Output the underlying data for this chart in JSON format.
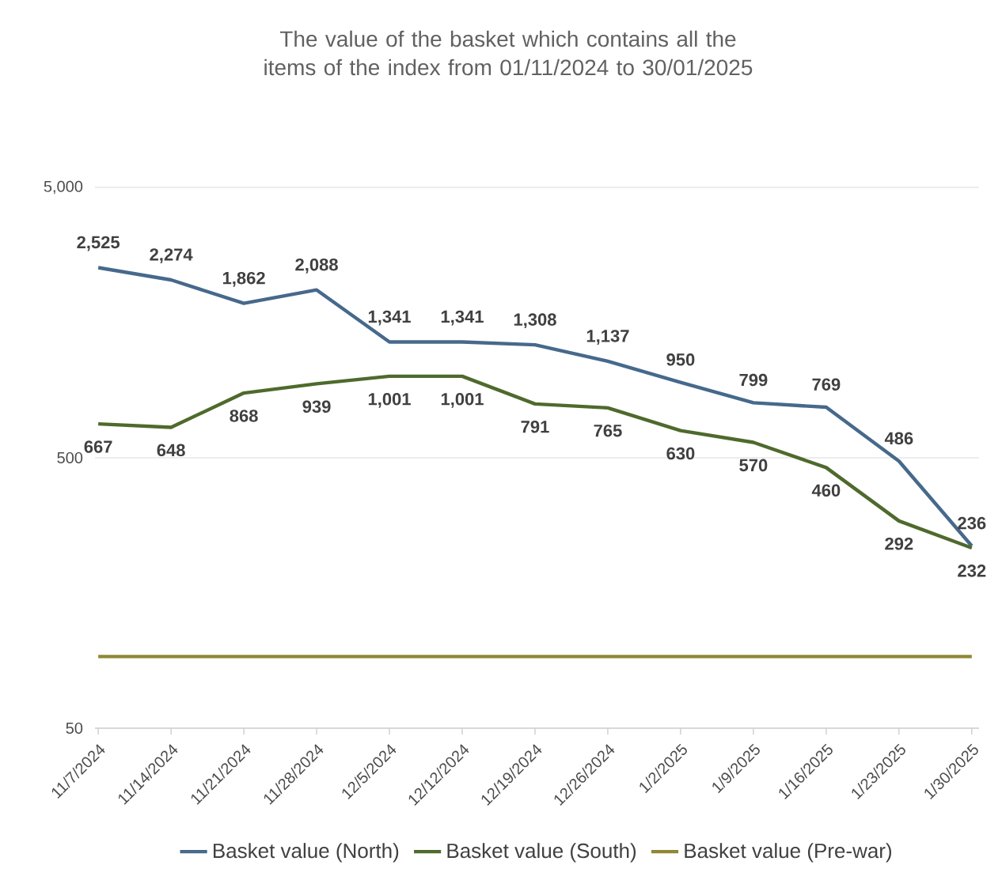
{
  "chart_data": {
    "type": "line",
    "title": "The value of the basket which contains all the items of the index from 01/11/2024 to 30/01/2025",
    "categories": [
      "11/7/2024",
      "11/14/2024",
      "11/21/2024",
      "11/28/2024",
      "12/5/2024",
      "12/12/2024",
      "12/19/2024",
      "12/26/2024",
      "1/2/2025",
      "1/9/2025",
      "1/16/2025",
      "1/23/2025",
      "1/30/2025"
    ],
    "series": [
      {
        "name": "Basket value (North)",
        "color": "#46698c",
        "values": [
          2525,
          2274,
          1862,
          2088,
          1341,
          1341,
          1308,
          1137,
          950,
          799,
          769,
          486,
          236
        ],
        "value_labels": [
          "2,525",
          "2,274",
          "1,862",
          "2,088",
          "1,341",
          "1,341",
          "1,308",
          "1,137",
          "950",
          "799",
          "769",
          "486",
          "236"
        ]
      },
      {
        "name": "Basket value (South)",
        "color": "#4e6a2c",
        "values": [
          667,
          648,
          868,
          939,
          1001,
          1001,
          791,
          765,
          630,
          570,
          460,
          292,
          232
        ],
        "value_labels": [
          "667",
          "648",
          "868",
          "939",
          "1,001",
          "1,001",
          "791",
          "765",
          "630",
          "570",
          "460",
          "292",
          "232"
        ]
      },
      {
        "name": "Basket value (Pre-war)",
        "color": "#8f8733",
        "values": [
          92,
          92,
          92,
          92,
          92,
          92,
          92,
          92,
          92,
          92,
          92,
          92,
          92
        ]
      }
    ],
    "log": "y",
    "ylim": [
      50,
      5000
    ],
    "yticks": [
      50,
      500,
      {
        "value": 5000,
        "label": "5,000"
      }
    ],
    "grid": "y",
    "legend": "bottom",
    "marker": "none",
    "line_style": "solid"
  }
}
